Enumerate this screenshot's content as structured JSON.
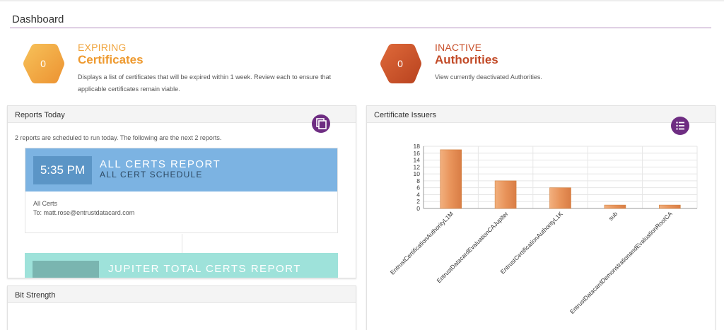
{
  "page": {
    "title": "Dashboard"
  },
  "expiring": {
    "count": "0",
    "kicker": "EXPIRING",
    "heading": "Certificates",
    "desc_line1": "Displays a list of certificates that will be expired within 1 week. Review each to ensure that",
    "desc_line2": "applicable certificates remain viable.",
    "color": "#f2a63a"
  },
  "inactive": {
    "count": "0",
    "kicker": "INACTIVE",
    "heading": "Authorities",
    "desc": "View currently deactivated Authorities.",
    "color": "#c8502b"
  },
  "reports_today": {
    "title": "Reports Today",
    "action_icon": "copy-icon",
    "note": "2 reports are scheduled to run today. The following are the next 2 reports.",
    "reports": [
      {
        "time": "5:35 PM",
        "name": "ALL CERTS REPORT",
        "schedule": "ALL CERT SCHEDULE",
        "detail": "All Certs",
        "recipient": "To: matt.rose@entrustdatacard.com"
      },
      {
        "name": "JUPITER TOTAL CERTS REPORT"
      }
    ]
  },
  "bit_strength": {
    "title": "Bit Strength"
  },
  "issuers": {
    "title": "Certificate Issuers",
    "action_icon": "list-icon",
    "accent": "#e8935a"
  },
  "chart_data": {
    "type": "bar",
    "title": "",
    "xlabel": "",
    "ylabel": "",
    "categories": [
      "EntrustCertificationAuthorityL1M",
      "EntrustDatacardEvaluationCAJupiter",
      "EntrustCertificationAuthorityL1K",
      "sub",
      "EntrustDatacardDemonstrationandEvaluationRootCA"
    ],
    "values": [
      17,
      8,
      6,
      1,
      1
    ],
    "ylim": [
      0,
      18
    ],
    "yticks": [
      0,
      2,
      4,
      6,
      8,
      10,
      12,
      14,
      16,
      18
    ],
    "grid": true,
    "legend": "none"
  }
}
